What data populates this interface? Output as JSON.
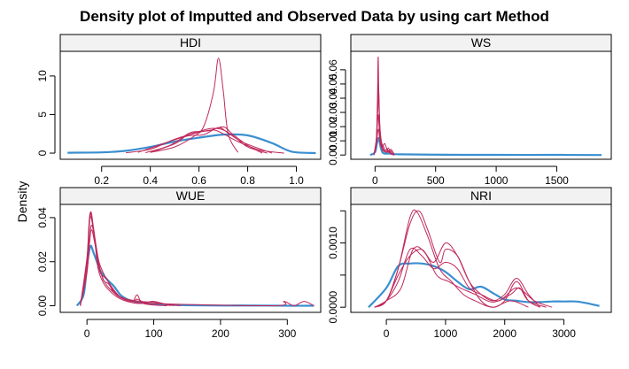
{
  "chart_data": {
    "type": "line",
    "title": "Density plot of Imputted and Observed Data by using cart Method",
    "ylabel": "Density",
    "xlabel": "",
    "colors": {
      "observed": "#3a8fd0",
      "imputed": "#c0285a"
    },
    "legend": "none",
    "panels": [
      {
        "name": "HDI",
        "xlim": [
          0.03,
          1.1
        ],
        "ylim": [
          -0.8,
          13.2
        ],
        "xticks": [
          0.2,
          0.4,
          0.6,
          0.8,
          1.0
        ],
        "xtick_labels": [
          "0.2",
          "0.4",
          "0.6",
          "0.8",
          "1.0"
        ],
        "yticks": [
          0,
          5,
          10
        ],
        "ytick_labels": [
          "0",
          "5",
          "10"
        ],
        "series": [
          {
            "role": "observed",
            "x": [
              0.06,
              0.2,
              0.3,
              0.4,
              0.5,
              0.6,
              0.7,
              0.8,
              0.9,
              0.98,
              1.08
            ],
            "y": [
              0.05,
              0.1,
              0.3,
              0.8,
              1.5,
              2.0,
              2.4,
              2.3,
              1.3,
              0.2,
              0.0
            ]
          },
          {
            "role": "imputed",
            "x": [
              0.3,
              0.4,
              0.5,
              0.6,
              0.66,
              0.7,
              0.76,
              0.85,
              0.95
            ],
            "y": [
              0.05,
              0.5,
              1.8,
              2.7,
              3.0,
              2.5,
              1.5,
              0.4,
              0.0
            ]
          },
          {
            "role": "imputed",
            "x": [
              0.4,
              0.5,
              0.55,
              0.6,
              0.65,
              0.7,
              0.75,
              0.8,
              0.88
            ],
            "y": [
              0.1,
              1.2,
              2.3,
              2.8,
              3.2,
              3.0,
              2.0,
              0.8,
              0.0
            ]
          },
          {
            "role": "imputed",
            "x": [
              0.38,
              0.48,
              0.56,
              0.6,
              0.64,
              0.7,
              0.74,
              0.8,
              0.86
            ],
            "y": [
              0.05,
              1.0,
              2.6,
              2.8,
              2.9,
              3.4,
              2.4,
              1.0,
              0.0
            ]
          },
          {
            "role": "imputed",
            "x": [
              0.35,
              0.45,
              0.55,
              0.62,
              0.68,
              0.72,
              0.78,
              0.9
            ],
            "y": [
              0.1,
              1.2,
              2.2,
              2.4,
              3.3,
              2.6,
              1.4,
              0.0
            ]
          },
          {
            "role": "imputed",
            "x": [
              0.4,
              0.5,
              0.58,
              0.62,
              0.66,
              0.68,
              0.7,
              0.72,
              0.76
            ],
            "y": [
              0.1,
              0.8,
              2.2,
              3.5,
              8.0,
              12.3,
              8.0,
              2.5,
              0.1
            ]
          }
        ]
      },
      {
        "name": "WS",
        "xlim": [
          -200,
          1950
        ],
        "ylim": [
          -0.003,
          0.073
        ],
        "xticks": [
          0,
          500,
          1000,
          1500
        ],
        "xtick_labels": [
          "0",
          "500",
          "1000",
          "1500"
        ],
        "yticks": [
          0,
          0.01,
          0.02,
          0.03,
          0.04,
          0.05,
          0.06
        ],
        "ytick_labels": [
          "0.00",
          "0.01",
          "0.02",
          "0.03",
          "0.04",
          "0.05",
          "0.06"
        ],
        "series": [
          {
            "role": "observed",
            "x": [
              -40,
              0,
              15,
              30,
              45,
              60,
              80,
              120,
              200,
              600,
              1000,
              1500,
              1870
            ],
            "y": [
              0.0,
              0.002,
              0.008,
              0.012,
              0.006,
              0.002,
              0.001,
              0.001,
              0.0005,
              0.0002,
              0.0001,
              0.0001,
              0.0
            ]
          },
          {
            "role": "imputed",
            "x": [
              -10,
              10,
              20,
              26,
              32,
              45,
              60,
              80,
              100,
              130,
              160
            ],
            "y": [
              0.0,
              0.01,
              0.04,
              0.069,
              0.035,
              0.012,
              0.004,
              0.003,
              0.004,
              0.001,
              0.0
            ]
          },
          {
            "role": "imputed",
            "x": [
              -10,
              10,
              20,
              28,
              36,
              50,
              70,
              90,
              120,
              150
            ],
            "y": [
              0.0,
              0.008,
              0.03,
              0.05,
              0.025,
              0.01,
              0.006,
              0.002,
              0.003,
              0.0
            ]
          },
          {
            "role": "imputed",
            "x": [
              -10,
              10,
              22,
              30,
              40,
              55,
              75,
              100,
              130,
              145,
              160
            ],
            "y": [
              0.0,
              0.01,
              0.032,
              0.045,
              0.02,
              0.008,
              0.003,
              0.002,
              0.004,
              0.002,
              0.0
            ]
          },
          {
            "role": "imputed",
            "x": [
              -10,
              12,
              24,
              32,
              42,
              60,
              80,
              110,
              140,
              160
            ],
            "y": [
              0.0,
              0.012,
              0.028,
              0.022,
              0.012,
              0.006,
              0.008,
              0.002,
              0.003,
              0.0
            ]
          },
          {
            "role": "imputed",
            "x": [
              -10,
              10,
              20,
              30,
              40,
              60,
              90,
              110,
              130,
              160
            ],
            "y": [
              0.0,
              0.006,
              0.015,
              0.018,
              0.01,
              0.004,
              0.002,
              0.005,
              0.001,
              0.0
            ]
          }
        ]
      },
      {
        "name": "WUE",
        "xlim": [
          -40,
          350
        ],
        "ylim": [
          -0.003,
          0.046
        ],
        "xticks": [
          0,
          100,
          200,
          300
        ],
        "xtick_labels": [
          "0",
          "100",
          "200",
          "300"
        ],
        "yticks": [
          0,
          0.02,
          0.04
        ],
        "ytick_labels": [
          "0.00",
          "0.02",
          "0.04"
        ],
        "series": [
          {
            "role": "observed",
            "x": [
              -15,
              -5,
              0,
              5,
              10,
              20,
              30,
              40,
              50,
              60,
              70,
              80,
              90,
              100,
              120,
              140,
              160,
              200,
              260,
              300,
              340
            ],
            "y": [
              0.0,
              0.005,
              0.018,
              0.027,
              0.024,
              0.016,
              0.012,
              0.009,
              0.005,
              0.003,
              0.002,
              0.0015,
              0.001,
              0.0008,
              0.0005,
              0.0003,
              0.0002,
              0.0001,
              0.0001,
              0.0,
              0.0
            ]
          },
          {
            "role": "imputed",
            "x": [
              -10,
              0,
              4,
              8,
              14,
              20,
              30,
              40,
              55,
              70,
              75,
              90,
              110,
              140
            ],
            "y": [
              0.0,
              0.02,
              0.041,
              0.038,
              0.025,
              0.015,
              0.012,
              0.006,
              0.003,
              0.002,
              0.003,
              0.001,
              0.001,
              0.0
            ]
          },
          {
            "role": "imputed",
            "x": [
              -10,
              0,
              5,
              10,
              16,
              24,
              32,
              45,
              60,
              80,
              100,
              130
            ],
            "y": [
              0.0,
              0.018,
              0.042,
              0.035,
              0.022,
              0.012,
              0.01,
              0.005,
              0.003,
              0.002,
              0.0015,
              0.0
            ]
          },
          {
            "role": "imputed",
            "x": [
              -10,
              0,
              6,
              12,
              18,
              26,
              36,
              50,
              68,
              75,
              85,
              120
            ],
            "y": [
              0.0,
              0.015,
              0.036,
              0.03,
              0.02,
              0.014,
              0.009,
              0.004,
              0.002,
              0.005,
              0.001,
              0.0
            ]
          },
          {
            "role": "imputed",
            "x": [
              -10,
              0,
              4,
              10,
              16,
              22,
              30,
              45,
              60,
              80,
              100,
              125
            ],
            "y": [
              0.0,
              0.022,
              0.04,
              0.034,
              0.018,
              0.012,
              0.008,
              0.004,
              0.002,
              0.001,
              0.002,
              0.0
            ]
          },
          {
            "role": "imputed",
            "x": [
              -10,
              0,
              6,
              12,
              20,
              28,
              40,
              55,
              70,
              100,
              280,
              295,
              310,
              325,
              340
            ],
            "y": [
              0.0,
              0.016,
              0.034,
              0.028,
              0.016,
              0.01,
              0.006,
              0.003,
              0.002,
              0.001,
              0.0,
              0.002,
              0.0,
              0.002,
              0.0
            ]
          }
        ]
      },
      {
        "name": "NRI",
        "xlim": [
          -600,
          3800
        ],
        "ylim": [
          -8e-05,
          0.0016
        ],
        "xticks": [
          0,
          1000,
          2000,
          3000
        ],
        "xtick_labels": [
          "0",
          "1000",
          "2000",
          "3000"
        ],
        "yticks": [
          0,
          0.0005,
          0.001,
          0.0015
        ],
        "ytick_labels": [
          "0.0000",
          "",
          "0.0010",
          ""
        ],
        "series": [
          {
            "role": "observed",
            "x": [
              -300,
              0,
              200,
              400,
              600,
              800,
              1000,
              1200,
              1400,
              1600,
              1800,
              2000,
              2200,
              2400,
              2600,
              2800,
              3000,
              3200,
              3400,
              3600
            ],
            "y": [
              0.0,
              0.0003,
              0.00064,
              0.00068,
              0.00068,
              0.00064,
              0.00055,
              0.0004,
              0.00028,
              0.00032,
              0.00022,
              0.00012,
              0.0001,
              8e-05,
              8e-05,
              9e-05,
              9e-05,
              9e-05,
              6e-05,
              2e-05
            ]
          },
          {
            "role": "imputed",
            "x": [
              -200,
              0,
              200,
              400,
              550,
              700,
              900,
              1000,
              1200,
              1400,
              1600,
              1800,
              2000,
              2200,
              2400,
              2600
            ],
            "y": [
              0.0,
              0.0001,
              0.0006,
              0.0013,
              0.0015,
              0.0012,
              0.0007,
              0.0009,
              0.0008,
              0.0004,
              0.0001,
              0.0,
              0.0001,
              0.0004,
              0.0001,
              0.0
            ]
          },
          {
            "role": "imputed",
            "x": [
              -200,
              0,
              200,
              400,
              520,
              700,
              900,
              1100,
              1300,
              1500,
              1800,
              2100,
              2400
            ],
            "y": [
              0.0,
              0.0001,
              0.0006,
              0.0014,
              0.00148,
              0.0011,
              0.0006,
              0.0004,
              0.0002,
              0.0001,
              0.0,
              0.0001,
              0.0
            ]
          },
          {
            "role": "imputed",
            "x": [
              -200,
              0,
              200,
              400,
              600,
              800,
              1000,
              1200,
              1400,
              1600,
              1800,
              2000,
              2200,
              2400,
              2600
            ],
            "y": [
              0.0,
              0.0001,
              0.0005,
              0.0008,
              0.0009,
              0.0007,
              0.001,
              0.0008,
              0.0004,
              0.0002,
              0.0001,
              0.0002,
              0.00045,
              0.0002,
              0.0
            ]
          },
          {
            "role": "imputed",
            "x": [
              -200,
              0,
              200,
              400,
              600,
              800,
              1000,
              1200,
              1400,
              1600,
              1900,
              2200,
              2500,
              2800
            ],
            "y": [
              0.0,
              0.0001,
              0.0004,
              0.0009,
              0.0008,
              0.0006,
              0.0007,
              0.0006,
              0.0003,
              0.0002,
              0.0001,
              0.0003,
              0.0001,
              0.0
            ]
          },
          {
            "role": "imputed",
            "x": [
              -200,
              0,
              250,
              450,
              650,
              850,
              1050,
              1250,
              1500,
              1800,
              2100,
              2250,
              2400,
              2700
            ],
            "y": [
              0.0,
              0.0001,
              0.0003,
              0.0009,
              0.00085,
              0.0005,
              0.0004,
              0.0003,
              0.0002,
              8e-05,
              0.0002,
              0.0003,
              0.0001,
              0.0
            ]
          }
        ]
      }
    ]
  }
}
